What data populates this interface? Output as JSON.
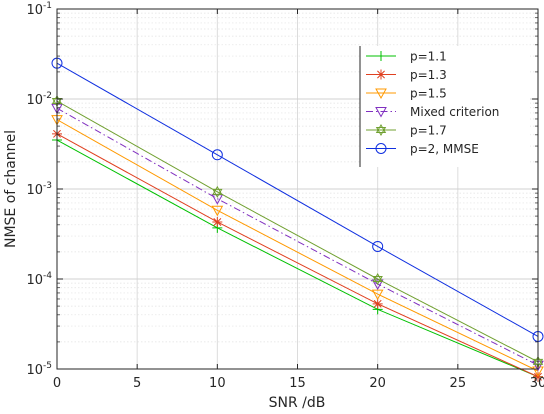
{
  "chart_data": {
    "type": "line",
    "title": "",
    "xlabel": "SNR /dB",
    "ylabel": "NMSE of channel",
    "x": [
      0,
      10,
      20,
      30
    ],
    "xlim": [
      0,
      30
    ],
    "ylim": [
      1e-05,
      0.1
    ],
    "y_scale": "log",
    "x_ticks": [
      0,
      5,
      10,
      15,
      20,
      25,
      30
    ],
    "x_tick_labels": [
      "0",
      "5",
      "10",
      "15",
      "20",
      "25",
      "30"
    ],
    "y_tick_labels": [
      {
        "base": "10",
        "exp": "-5"
      },
      {
        "base": "10",
        "exp": "-4"
      },
      {
        "base": "10",
        "exp": "-3"
      },
      {
        "base": "10",
        "exp": "-2"
      },
      {
        "base": "10",
        "exp": "-1"
      }
    ],
    "grid": true,
    "legend_position": "top-right",
    "series": [
      {
        "name": "p=1.1",
        "values": [
          0.0035,
          0.00037,
          4.6e-05,
          8.2e-06
        ],
        "color": "#00c000",
        "marker": "plus",
        "dash": "solid"
      },
      {
        "name": "p=1.3",
        "values": [
          0.0041,
          0.00043,
          5.3e-05,
          8.2e-06
        ],
        "color": "#e04020",
        "marker": "star",
        "dash": "solid"
      },
      {
        "name": "p=1.5",
        "values": [
          0.0059,
          0.00058,
          6.8e-05,
          9.5e-06
        ],
        "color": "#ff9900",
        "marker": "triangle-down",
        "dash": "solid"
      },
      {
        "name": "Mixed criterion",
        "values": [
          0.0079,
          0.00078,
          8.8e-05,
          1.1e-05
        ],
        "color": "#8030c0",
        "marker": "triangle-down",
        "dash": "dashdot"
      },
      {
        "name": "p=1.7",
        "values": [
          0.0095,
          0.00093,
          0.0001,
          1.2e-05
        ],
        "color": "#70a030",
        "marker": "hexagram",
        "dash": "solid"
      },
      {
        "name": "p=2, MMSE",
        "values": [
          0.025,
          0.0024,
          0.00023,
          2.3e-05
        ],
        "color": "#1030e0",
        "marker": "circle",
        "dash": "solid"
      }
    ]
  }
}
